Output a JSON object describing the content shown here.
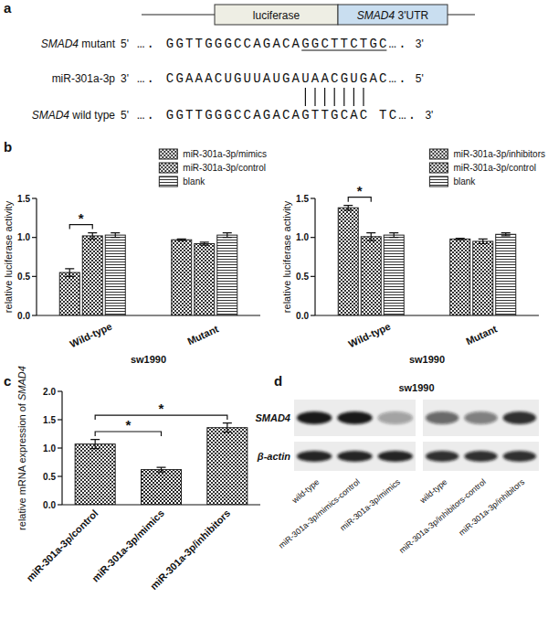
{
  "panel_labels": [
    "a",
    "b",
    "c",
    "d"
  ],
  "panel_a": {
    "construct": {
      "reporter": "luciferase",
      "utr": [
        {
          "text": "SMAD4",
          "italic": true
        },
        {
          "text": " 3'UTR",
          "italic": false
        }
      ]
    },
    "sequences": [
      {
        "name": [
          {
            "text": "SMAD4",
            "italic": true
          },
          {
            "text": " mutant",
            "italic": false
          }
        ],
        "left_end": "5'",
        "right_end": "3'",
        "text": "…. GGTTGGGCCAGACA",
        "underlined": "GGCTTCTGC",
        "tail": "…."
      },
      {
        "name": [
          {
            "text": "miR-301a-3p",
            "italic": false
          }
        ],
        "left_end": "3'",
        "right_end": "5'",
        "text": "…. CGAAACUGUUAUGAUAACGUGAC",
        "tail": "…."
      },
      {
        "name": [
          {
            "text": "SMAD4",
            "italic": true
          },
          {
            "text": " wild type",
            "italic": false
          }
        ],
        "left_end": "5'",
        "right_end": "3'",
        "text": "…. GGTTGGGCCAGACAGTTGCAC TC",
        "tail": "…."
      }
    ],
    "paired_positions": [
      17,
      18,
      19,
      20,
      21,
      22,
      23
    ]
  },
  "chart_data": [
    {
      "type": "bar",
      "categories": [
        "Wild-type",
        "Mutant"
      ],
      "series": [
        {
          "name": "miR-301a-3p/mimics",
          "color": "#333333",
          "values": [
            0.55,
            0.97
          ],
          "errors": [
            0.05,
            0.01
          ]
        },
        {
          "name": "miR-301a-3p/control",
          "color": "#333333",
          "values": [
            1.02,
            0.92
          ],
          "errors": [
            0.04,
            0.02
          ]
        },
        {
          "name": "blank",
          "color": "#333333",
          "values": [
            1.03,
            1.03
          ],
          "errors": [
            0.03,
            0.03
          ]
        }
      ],
      "x_label": "sw1990",
      "y_label": "relative luciferase activity",
      "ylim": [
        0,
        1.5
      ],
      "yticks": [
        {
          "value": 0,
          "label": "0.0"
        },
        {
          "value": 0.5,
          "label": "0.5"
        },
        {
          "value": 1,
          "label": "1.0"
        },
        {
          "value": 1.5,
          "label": "1.5"
        }
      ],
      "legend": "top-right",
      "annotations": [
        {
          "text": "*",
          "category": 0,
          "series": [
            0,
            1
          ]
        }
      ]
    },
    {
      "type": "bar",
      "categories": [
        "Wild-type",
        "Mutant"
      ],
      "series": [
        {
          "name": "miR-301a-3p/inhibitors",
          "color": "#333333",
          "values": [
            1.38,
            0.98
          ],
          "errors": [
            0.03,
            0.01
          ]
        },
        {
          "name": "miR-301a-3p/control",
          "color": "#333333",
          "values": [
            1.01,
            0.95
          ],
          "errors": [
            0.05,
            0.03
          ]
        },
        {
          "name": "blank",
          "color": "#333333",
          "values": [
            1.03,
            1.04
          ],
          "errors": [
            0.03,
            0.02
          ]
        }
      ],
      "x_label": "sw1990",
      "y_label": "relative luciferase activity",
      "ylim": [
        0,
        1.5
      ],
      "yticks": [
        {
          "value": 0,
          "label": "0.0"
        },
        {
          "value": 0.5,
          "label": "0.5"
        },
        {
          "value": 1,
          "label": "1.0"
        },
        {
          "value": 1.5,
          "label": "1.5"
        }
      ],
      "legend": "top-right",
      "annotations": [
        {
          "text": "*",
          "category": 0,
          "series": [
            0,
            1
          ]
        }
      ]
    },
    {
      "type": "bar",
      "categories": [
        "miR-301a-3p/control",
        "miR-301a-3p/mimics",
        "miR-301a-3p/inhibitors"
      ],
      "values": [
        1.07,
        0.62,
        1.36
      ],
      "errors": [
        0.08,
        0.04,
        0.08
      ],
      "colors": [
        "#333333",
        "#222222",
        "#333333"
      ],
      "y_label": "relative mRNA expression of SMAD4",
      "ylim": [
        0,
        2
      ],
      "yticks": [
        {
          "value": 0,
          "label": "0.0"
        },
        {
          "value": 0.5,
          "label": "0.5"
        },
        {
          "value": 1,
          "label": "1.0"
        },
        {
          "value": 1.5,
          "label": "1.5"
        },
        {
          "value": 2,
          "label": "2.0"
        }
      ],
      "annotations": [
        {
          "text": "*",
          "categories": [
            0,
            1
          ]
        },
        {
          "text": "*",
          "categories": [
            0,
            2
          ]
        }
      ]
    }
  ],
  "panel_d": {
    "title": "sw1990",
    "rows": [
      "SMAD4",
      "β-actin"
    ],
    "blots": [
      {
        "lanes": [
          "wild-type",
          "miR-301a-3p/mimics-control",
          "miR-301a-3p/mimics"
        ],
        "band_intensity": [
          [
            0.95,
            0.95,
            0.35
          ],
          [
            0.9,
            0.9,
            0.9
          ]
        ]
      },
      {
        "lanes": [
          "wild-type",
          "miR-301a-3p/inhibitors-control",
          "miR-301a-3p/inhibitors"
        ],
        "band_intensity": [
          [
            0.6,
            0.5,
            0.85
          ],
          [
            0.85,
            0.85,
            0.85
          ]
        ]
      }
    ]
  }
}
